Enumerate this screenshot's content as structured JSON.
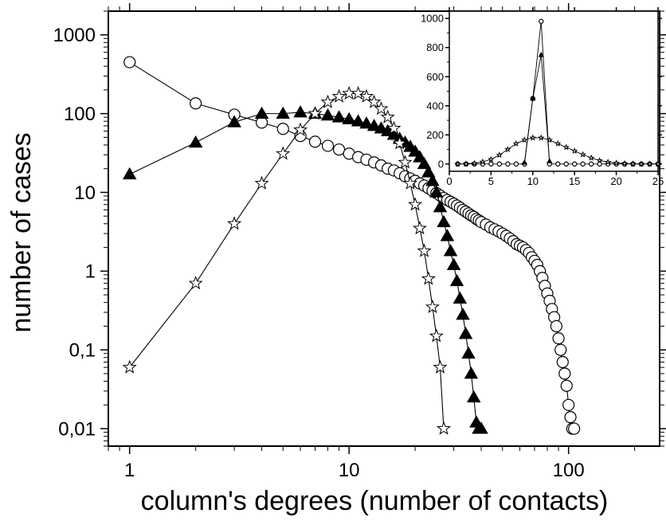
{
  "chart_data": [
    {
      "type": "scatter",
      "xlabel": "column's degrees (number of contacts)",
      "ylabel": "number of cases",
      "xscale": "log",
      "yscale": "log",
      "xlim": [
        0.8,
        260
      ],
      "ylim": [
        0.006,
        2000
      ],
      "xticks": [
        1,
        10,
        100
      ],
      "xtick_labels": [
        "1",
        "10",
        "100"
      ],
      "yticks": [
        0.01,
        0.1,
        1,
        10,
        100,
        1000
      ],
      "ytick_labels": [
        "0,01",
        "0,1",
        "1",
        "10",
        "100",
        "1000"
      ],
      "grid": false,
      "series": [
        {
          "marker": "open-circle",
          "points": [
            [
              1,
              450
            ],
            [
              2,
              135
            ],
            [
              3,
              97
            ],
            [
              4,
              77
            ],
            [
              5,
              64
            ],
            [
              6,
              52
            ],
            [
              7,
              44
            ],
            [
              8,
              39
            ],
            [
              9,
              35
            ],
            [
              10,
              31
            ],
            [
              11,
              28
            ],
            [
              12,
              26
            ],
            [
              13,
              24
            ],
            [
              14,
              22
            ],
            [
              15,
              20
            ],
            [
              16,
              19
            ],
            [
              17,
              17.5
            ],
            [
              18,
              16
            ],
            [
              19,
              15
            ],
            [
              20,
              14
            ],
            [
              21,
              13
            ],
            [
              22,
              12.2
            ],
            [
              23,
              11.3
            ],
            [
              24,
              10.5
            ],
            [
              25,
              9.8
            ],
            [
              26,
              9.1
            ],
            [
              27,
              8.5
            ],
            [
              28,
              8.0
            ],
            [
              29,
              7.6
            ],
            [
              30,
              7.2
            ],
            [
              31,
              6.8
            ],
            [
              32,
              6.4
            ],
            [
              33,
              6.0
            ],
            [
              34,
              5.7
            ],
            [
              35,
              5.4
            ],
            [
              36,
              5.1
            ],
            [
              37,
              4.9
            ],
            [
              38,
              4.6
            ],
            [
              39,
              4.4
            ],
            [
              40,
              4.2
            ],
            [
              42,
              3.9
            ],
            [
              44,
              3.6
            ],
            [
              46,
              3.4
            ],
            [
              48,
              3.2
            ],
            [
              50,
              3.0
            ],
            [
              52,
              2.8
            ],
            [
              54,
              2.6
            ],
            [
              56,
              2.4
            ],
            [
              58,
              2.2
            ],
            [
              60,
              2.1
            ],
            [
              62,
              2.0
            ],
            [
              64,
              1.85
            ],
            [
              66,
              1.7
            ],
            [
              68,
              1.5
            ],
            [
              70,
              1.35
            ],
            [
              72,
              1.2
            ],
            [
              74,
              1.0
            ],
            [
              76,
              0.82
            ],
            [
              78,
              0.65
            ],
            [
              80,
              0.52
            ],
            [
              82,
              0.42
            ],
            [
              84,
              0.33
            ],
            [
              86,
              0.26
            ],
            [
              88,
              0.2
            ],
            [
              90,
              0.14
            ],
            [
              92,
              0.1
            ],
            [
              94,
              0.07
            ],
            [
              96,
              0.05
            ],
            [
              98,
              0.035
            ],
            [
              100,
              0.02
            ],
            [
              102,
              0.014
            ],
            [
              104,
              0.01
            ],
            [
              106,
              0.01
            ]
          ]
        },
        {
          "marker": "filled-triangle",
          "points": [
            [
              1,
              17
            ],
            [
              2,
              43
            ],
            [
              3,
              78
            ],
            [
              4,
              100
            ],
            [
              5,
              100
            ],
            [
              6,
              104
            ],
            [
              7,
              100
            ],
            [
              8,
              95
            ],
            [
              9,
              90
            ],
            [
              10,
              85
            ],
            [
              11,
              80
            ],
            [
              12,
              75
            ],
            [
              13,
              70
            ],
            [
              14,
              65
            ],
            [
              15,
              60
            ],
            [
              16,
              54
            ],
            [
              17,
              48
            ],
            [
              18,
              43
            ],
            [
              19,
              38
            ],
            [
              20,
              33
            ],
            [
              21,
              28
            ],
            [
              22,
              23
            ],
            [
              23,
              18
            ],
            [
              24,
              14
            ],
            [
              25,
              10
            ],
            [
              26,
              6.5
            ],
            [
              27,
              4.2
            ],
            [
              28,
              2.8
            ],
            [
              29,
              1.8
            ],
            [
              30,
              1.2
            ],
            [
              31,
              0.75
            ],
            [
              32,
              0.45
            ],
            [
              33,
              0.28
            ],
            [
              34,
              0.16
            ],
            [
              35,
              0.09
            ],
            [
              36,
              0.05
            ],
            [
              37,
              0.025
            ],
            [
              38,
              0.012
            ],
            [
              39,
              0.01
            ],
            [
              40,
              0.01
            ]
          ]
        },
        {
          "marker": "open-star",
          "points": [
            [
              1,
              0.06
            ],
            [
              2,
              0.7
            ],
            [
              3,
              4
            ],
            [
              4,
              13
            ],
            [
              5,
              31
            ],
            [
              6,
              62
            ],
            [
              7,
              100
            ],
            [
              8,
              140
            ],
            [
              9,
              165
            ],
            [
              10,
              180
            ],
            [
              11,
              180
            ],
            [
              12,
              165
            ],
            [
              13,
              140
            ],
            [
              14,
              115
            ],
            [
              15,
              90
            ],
            [
              16,
              65
            ],
            [
              17,
              42
            ],
            [
              18,
              24
            ],
            [
              19,
              13
            ],
            [
              20,
              7
            ],
            [
              21,
              3.5
            ],
            [
              22,
              1.8
            ],
            [
              23,
              0.8
            ],
            [
              24,
              0.35
            ],
            [
              25,
              0.15
            ],
            [
              26,
              0.06
            ],
            [
              27,
              0.01
            ]
          ]
        }
      ]
    },
    {
      "type": "line",
      "inset": true,
      "xscale": "linear",
      "yscale": "linear",
      "xlim": [
        0,
        25
      ],
      "ylim": [
        -50,
        1050
      ],
      "xticks": [
        0,
        5,
        10,
        15,
        20,
        25
      ],
      "xtick_labels": [
        "0",
        "5",
        "10",
        "15",
        "20",
        "25"
      ],
      "yticks": [
        0,
        200,
        400,
        600,
        800,
        1000
      ],
      "ytick_labels": [
        "0",
        "200",
        "400",
        "600",
        "800",
        "1000"
      ],
      "series": [
        {
          "marker": "open-circle",
          "points": [
            [
              1,
              0
            ],
            [
              2,
              0
            ],
            [
              3,
              0
            ],
            [
              4,
              0
            ],
            [
              5,
              0
            ],
            [
              6,
              0
            ],
            [
              7,
              0
            ],
            [
              8,
              0
            ],
            [
              9,
              0
            ],
            [
              10,
              450
            ],
            [
              11,
              980
            ],
            [
              12,
              0
            ],
            [
              13,
              0
            ],
            [
              14,
              0
            ],
            [
              15,
              0
            ],
            [
              16,
              0
            ],
            [
              17,
              0
            ],
            [
              18,
              0
            ],
            [
              19,
              0
            ],
            [
              20,
              0
            ],
            [
              21,
              0
            ],
            [
              22,
              0
            ],
            [
              23,
              0
            ],
            [
              24,
              0
            ],
            [
              25,
              0
            ]
          ]
        },
        {
          "marker": "filled-triangle",
          "points": [
            [
              9,
              10
            ],
            [
              10,
              450
            ],
            [
              11,
              750
            ],
            [
              12,
              20
            ]
          ]
        },
        {
          "marker": "open-star",
          "points": [
            [
              1,
              0
            ],
            [
              2,
              1
            ],
            [
              3,
              5
            ],
            [
              4,
              15
            ],
            [
              5,
              32
            ],
            [
              6,
              62
            ],
            [
              7,
              100
            ],
            [
              8,
              140
            ],
            [
              9,
              165
            ],
            [
              10,
              180
            ],
            [
              11,
              180
            ],
            [
              12,
              165
            ],
            [
              13,
              140
            ],
            [
              14,
              115
            ],
            [
              15,
              90
            ],
            [
              16,
              65
            ],
            [
              17,
              42
            ],
            [
              18,
              24
            ],
            [
              19,
              13
            ],
            [
              20,
              7
            ],
            [
              21,
              3
            ],
            [
              22,
              1
            ],
            [
              23,
              0
            ],
            [
              24,
              0
            ],
            [
              25,
              0
            ]
          ]
        }
      ]
    }
  ]
}
